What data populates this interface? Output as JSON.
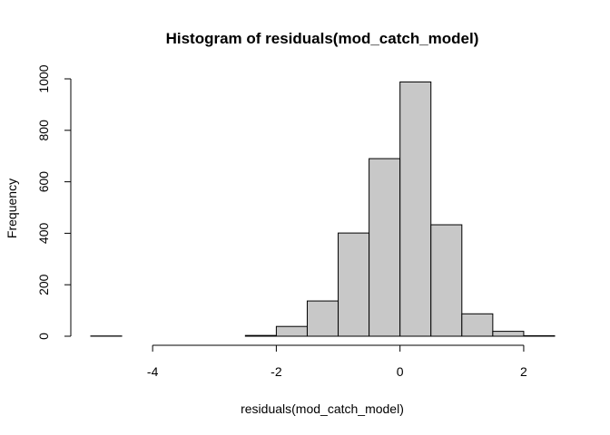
{
  "chart_data": {
    "type": "bar",
    "title": "Histogram of residuals(mod_catch_model)",
    "xlabel": "residuals(mod_catch_model)",
    "ylabel": "Frequency",
    "bins": [
      {
        "x0": -5.0,
        "x1": -4.5,
        "count": 1
      },
      {
        "x0": -4.5,
        "x1": -4.0,
        "count": 0
      },
      {
        "x0": -4.0,
        "x1": -3.5,
        "count": 0
      },
      {
        "x0": -3.5,
        "x1": -3.0,
        "count": 0
      },
      {
        "x0": -3.0,
        "x1": -2.5,
        "count": 0
      },
      {
        "x0": -2.5,
        "x1": -2.0,
        "count": 3
      },
      {
        "x0": -2.0,
        "x1": -1.5,
        "count": 38
      },
      {
        "x0": -1.5,
        "x1": -1.0,
        "count": 137
      },
      {
        "x0": -1.0,
        "x1": -0.5,
        "count": 401
      },
      {
        "x0": -0.5,
        "x1": 0.0,
        "count": 690
      },
      {
        "x0": 0.0,
        "x1": 0.5,
        "count": 988
      },
      {
        "x0": 0.5,
        "x1": 1.0,
        "count": 433
      },
      {
        "x0": 1.0,
        "x1": 1.5,
        "count": 87
      },
      {
        "x0": 1.5,
        "x1": 2.0,
        "count": 19
      },
      {
        "x0": 2.0,
        "x1": 2.5,
        "count": 2
      }
    ],
    "xlim": [
      -5.0,
      2.5
    ],
    "ylim": [
      0,
      1000
    ],
    "x_ticks": [
      -4,
      -2,
      0,
      2
    ],
    "y_ticks": [
      0,
      200,
      400,
      600,
      800,
      1000
    ],
    "x_tick_labels": [
      "-4",
      "-2",
      "0",
      "2"
    ],
    "y_tick_labels": [
      "0",
      "200",
      "400",
      "600",
      "800",
      "1000"
    ],
    "bar_fill": "#c8c8c8",
    "bar_stroke": "#000000",
    "grid": false,
    "legend": "none"
  }
}
